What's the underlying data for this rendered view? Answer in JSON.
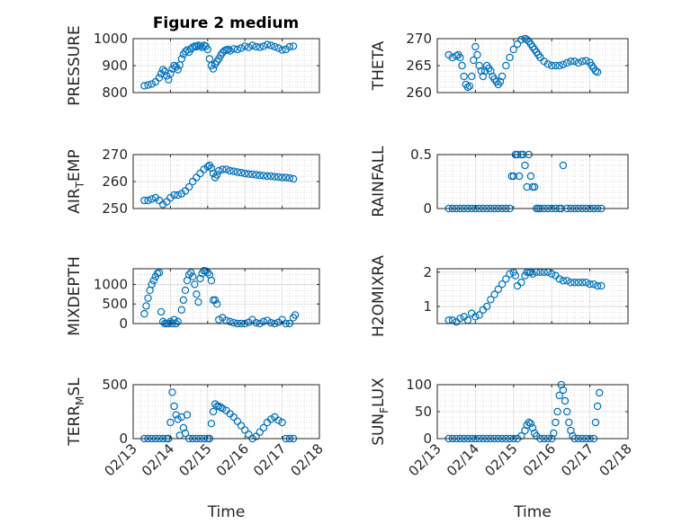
{
  "figure": {
    "title": "Figure 2 medium",
    "marker_color": "#0072BD"
  },
  "chart_data": [
    {
      "type": "scatter",
      "title": "Figure 2 medium",
      "ylabel": "PRESSURE",
      "ylabel_sub": "",
      "ylabel_tail": "",
      "xlabel": "",
      "ylim": [
        800,
        1000
      ],
      "yticks": [
        800,
        900,
        1000
      ],
      "x_ticklabels": [],
      "grid": true,
      "series": [
        {
          "x": [
            13.3,
            13.4,
            13.5,
            13.6,
            13.7,
            13.75,
            13.8,
            13.85,
            13.9,
            13.95,
            14.0,
            14.05,
            14.1,
            14.15,
            14.2,
            14.25,
            14.3,
            14.35,
            14.4,
            14.45,
            14.5,
            14.55,
            14.6,
            14.65,
            14.7,
            14.75,
            14.8,
            14.85,
            14.9,
            14.95,
            15.0,
            15.05,
            15.1,
            15.15,
            15.2,
            15.25,
            15.3,
            15.35,
            15.4,
            15.45,
            15.5,
            15.55,
            15.6,
            15.7,
            15.8,
            15.9,
            16.0,
            16.1,
            16.2,
            16.3,
            16.4,
            16.5,
            16.6,
            16.7,
            16.8,
            16.9,
            17.0,
            17.1,
            17.2,
            17.3
          ],
          "y": [
            825,
            828,
            832,
            840,
            855,
            870,
            885,
            878,
            862,
            848,
            870,
            888,
            900,
            895,
            885,
            902,
            925,
            942,
            952,
            958,
            950,
            962,
            968,
            972,
            970,
            975,
            972,
            968,
            975,
            972,
            960,
            925,
            900,
            888,
            905,
            915,
            925,
            938,
            948,
            955,
            958,
            960,
            955,
            962,
            960,
            965,
            972,
            968,
            975,
            970,
            968,
            972,
            978,
            975,
            970,
            965,
            958,
            960,
            970,
            972
          ]
        }
      ]
    },
    {
      "type": "scatter",
      "title": "",
      "ylabel": "THETA",
      "ylabel_sub": "",
      "ylabel_tail": "",
      "xlabel": "",
      "ylim": [
        260,
        270
      ],
      "yticks": [
        260,
        265,
        270
      ],
      "x_ticklabels": [],
      "grid": true,
      "series": [
        {
          "x": [
            13.3,
            13.4,
            13.5,
            13.55,
            13.6,
            13.65,
            13.7,
            13.75,
            13.8,
            13.85,
            13.9,
            13.95,
            14.0,
            14.05,
            14.1,
            14.15,
            14.2,
            14.25,
            14.3,
            14.35,
            14.4,
            14.45,
            14.5,
            14.55,
            14.6,
            14.65,
            14.7,
            14.8,
            14.9,
            15.0,
            15.1,
            15.2,
            15.3,
            15.35,
            15.4,
            15.45,
            15.5,
            15.55,
            15.6,
            15.65,
            15.7,
            15.8,
            15.9,
            16.0,
            16.1,
            16.2,
            16.3,
            16.4,
            16.5,
            16.6,
            16.7,
            16.8,
            16.9,
            17.0,
            17.05,
            17.1,
            17.15,
            17.2
          ],
          "y": [
            267,
            266.5,
            266.8,
            267,
            266.5,
            265,
            263,
            261.5,
            261,
            261.2,
            263,
            266,
            268.5,
            267,
            265,
            264,
            263,
            264,
            265,
            264.5,
            264,
            263,
            262.5,
            262,
            261.5,
            262,
            263,
            265,
            266.5,
            268,
            269,
            269.8,
            270,
            269.8,
            269.5,
            269,
            268.5,
            268,
            267.5,
            267,
            266.5,
            265.8,
            265.3,
            265,
            265,
            265,
            265.2,
            265.5,
            265.8,
            265.8,
            265.5,
            265.8,
            265.9,
            265.6,
            265,
            264.5,
            264,
            263.8
          ]
        }
      ]
    },
    {
      "type": "scatter",
      "title": "",
      "ylabel": "AIR",
      "ylabel_sub": "T",
      "ylabel_tail": "EMP",
      "xlabel": "",
      "ylim": [
        250,
        270
      ],
      "yticks": [
        250,
        260,
        270
      ],
      "x_ticklabels": [],
      "grid": true,
      "series": [
        {
          "x": [
            13.3,
            13.4,
            13.5,
            13.6,
            13.7,
            13.8,
            13.9,
            14.0,
            14.1,
            14.2,
            14.3,
            14.4,
            14.5,
            14.6,
            14.7,
            14.8,
            14.9,
            15.0,
            15.05,
            15.1,
            15.15,
            15.2,
            15.25,
            15.3,
            15.4,
            15.5,
            15.6,
            15.7,
            15.8,
            15.9,
            16.0,
            16.1,
            16.2,
            16.3,
            16.4,
            16.5,
            16.6,
            16.7,
            16.8,
            16.9,
            17.0,
            17.1,
            17.2,
            17.3
          ],
          "y": [
            253,
            253,
            253.5,
            254,
            253,
            251.5,
            252.5,
            254,
            255,
            255,
            255.5,
            256.5,
            258,
            260,
            261.5,
            263,
            264.5,
            265.5,
            266,
            265,
            263,
            261.5,
            262.5,
            264,
            264.5,
            264.5,
            264,
            263.8,
            263.5,
            263.3,
            263,
            262.8,
            262.7,
            262.5,
            262.3,
            262.2,
            262,
            262,
            261.8,
            261.7,
            261.5,
            261.5,
            261.3,
            261
          ]
        }
      ]
    },
    {
      "type": "scatter",
      "title": "",
      "ylabel": "RAINFALL",
      "ylabel_sub": "",
      "ylabel_tail": "",
      "xlabel": "",
      "ylim": [
        0,
        0.5
      ],
      "yticks": [
        0,
        0.5
      ],
      "x_ticklabels": [],
      "grid": true,
      "series": [
        {
          "x": [
            13.3,
            13.4,
            13.5,
            13.6,
            13.7,
            13.8,
            13.9,
            14.0,
            14.1,
            14.2,
            14.3,
            14.4,
            14.5,
            14.6,
            14.7,
            14.8,
            14.9,
            14.95,
            15.0,
            15.05,
            15.1,
            15.15,
            15.2,
            15.25,
            15.3,
            15.35,
            15.4,
            15.45,
            15.5,
            15.55,
            15.6,
            15.65,
            15.7,
            15.8,
            15.9,
            16.0,
            16.1,
            16.2,
            16.25,
            16.3,
            16.4,
            16.5,
            16.6,
            16.7,
            16.8,
            16.9,
            17.0,
            17.1,
            17.2,
            17.3
          ],
          "y": [
            0,
            0,
            0,
            0,
            0,
            0,
            0,
            0,
            0,
            0,
            0,
            0,
            0,
            0,
            0,
            0,
            0,
            0.3,
            0.3,
            0.5,
            0.5,
            0.3,
            0.5,
            0.5,
            0.4,
            0.2,
            0.5,
            0.3,
            0.2,
            0.2,
            0,
            0,
            0,
            0,
            0,
            0,
            0,
            0,
            0,
            0.4,
            0,
            0,
            0,
            0,
            0,
            0,
            0,
            0,
            0,
            0
          ]
        }
      ]
    },
    {
      "type": "scatter",
      "title": "",
      "ylabel": "MIXDEPTH",
      "ylabel_sub": "",
      "ylabel_tail": "",
      "xlabel": "",
      "ylim": [
        0,
        1400
      ],
      "yticks": [
        0,
        500,
        1000
      ],
      "x_ticklabels": [],
      "grid": true,
      "series": [
        {
          "x": [
            13.3,
            13.35,
            13.4,
            13.45,
            13.5,
            13.55,
            13.6,
            13.65,
            13.7,
            13.75,
            13.8,
            13.85,
            13.9,
            13.95,
            14.0,
            14.05,
            14.1,
            14.15,
            14.2,
            14.3,
            14.35,
            14.4,
            14.45,
            14.5,
            14.55,
            14.6,
            14.65,
            14.7,
            14.75,
            14.8,
            14.85,
            14.9,
            14.95,
            15.0,
            15.05,
            15.1,
            15.15,
            15.2,
            15.25,
            15.3,
            15.4,
            15.5,
            15.6,
            15.7,
            15.8,
            15.9,
            16.0,
            16.1,
            16.2,
            16.3,
            16.4,
            16.5,
            16.6,
            16.7,
            16.8,
            16.9,
            17.0,
            17.1,
            17.2,
            17.3,
            17.35
          ],
          "y": [
            250,
            450,
            650,
            850,
            1000,
            1100,
            1200,
            1280,
            1300,
            300,
            50,
            0,
            0,
            0,
            50,
            0,
            100,
            0,
            50,
            350,
            600,
            850,
            1100,
            1250,
            1300,
            1200,
            1000,
            750,
            550,
            1150,
            1280,
            1350,
            1340,
            1300,
            1250,
            1100,
            600,
            600,
            500,
            100,
            150,
            80,
            50,
            20,
            0,
            0,
            0,
            30,
            100,
            20,
            0,
            50,
            80,
            20,
            0,
            30,
            100,
            0,
            0,
            150,
            220
          ]
        }
      ]
    },
    {
      "type": "scatter",
      "title": "",
      "ylabel": "H2OMIXRA",
      "ylabel_sub": "",
      "ylabel_tail": "",
      "xlabel": "",
      "ylim": [
        0.5,
        2.1
      ],
      "yticks": [
        1,
        2
      ],
      "x_ticklabels": [],
      "grid": true,
      "series": [
        {
          "x": [
            13.3,
            13.4,
            13.5,
            13.6,
            13.7,
            13.8,
            13.9,
            14.0,
            14.1,
            14.2,
            14.3,
            14.4,
            14.5,
            14.6,
            14.7,
            14.8,
            14.9,
            15.0,
            15.05,
            15.1,
            15.2,
            15.3,
            15.35,
            15.4,
            15.45,
            15.5,
            15.6,
            15.7,
            15.8,
            15.9,
            16.0,
            16.1,
            16.2,
            16.3,
            16.4,
            16.5,
            16.6,
            16.7,
            16.8,
            16.9,
            17.0,
            17.1,
            17.2,
            17.3
          ],
          "y": [
            0.6,
            0.6,
            0.55,
            0.65,
            0.7,
            0.6,
            0.8,
            0.7,
            0.75,
            0.9,
            1.0,
            1.2,
            1.35,
            1.5,
            1.65,
            1.8,
            1.95,
            2.0,
            1.9,
            1.6,
            1.7,
            1.9,
            2.0,
            2.0,
            2.0,
            1.95,
            2.0,
            2.0,
            2.0,
            2.0,
            1.95,
            1.9,
            1.8,
            1.75,
            1.75,
            1.7,
            1.7,
            1.7,
            1.7,
            1.7,
            1.65,
            1.65,
            1.6,
            1.6
          ]
        }
      ]
    },
    {
      "type": "scatter",
      "title": "",
      "ylabel": "TERR",
      "ylabel_sub": "M",
      "ylabel_tail": "SL",
      "xlabel": "Time",
      "ylim": [
        0,
        500
      ],
      "yticks": [
        0,
        500
      ],
      "x_ticklabels": [
        "02/13",
        "02/14",
        "02/15",
        "02/16",
        "02/17",
        "02/18"
      ],
      "grid": true,
      "series": [
        {
          "x": [
            13.3,
            13.4,
            13.5,
            13.6,
            13.7,
            13.8,
            13.9,
            13.95,
            14.0,
            14.05,
            14.1,
            14.15,
            14.2,
            14.25,
            14.3,
            14.35,
            14.4,
            14.45,
            14.5,
            14.6,
            14.7,
            14.8,
            14.9,
            15.0,
            15.05,
            15.1,
            15.15,
            15.2,
            15.25,
            15.3,
            15.35,
            15.4,
            15.5,
            15.6,
            15.7,
            15.8,
            15.9,
            16.0,
            16.1,
            16.2,
            16.3,
            16.4,
            16.5,
            16.6,
            16.7,
            16.8,
            16.9,
            17.0,
            17.1,
            17.2,
            17.3
          ],
          "y": [
            0,
            0,
            0,
            0,
            0,
            0,
            0,
            0,
            150,
            430,
            300,
            220,
            180,
            30,
            200,
            100,
            50,
            220,
            0,
            0,
            0,
            0,
            0,
            0,
            0,
            140,
            250,
            320,
            300,
            300,
            290,
            280,
            260,
            230,
            200,
            160,
            120,
            80,
            40,
            0,
            20,
            60,
            100,
            150,
            180,
            200,
            170,
            150,
            0,
            0,
            0
          ]
        }
      ]
    },
    {
      "type": "scatter",
      "title": "",
      "ylabel": "SUN",
      "ylabel_sub": "F",
      "ylabel_tail": "LUX",
      "xlabel": "Time",
      "ylim": [
        0,
        100
      ],
      "yticks": [
        0,
        50,
        100
      ],
      "x_ticklabels": [
        "02/13",
        "02/14",
        "02/15",
        "02/16",
        "02/17",
        "02/18"
      ],
      "grid": true,
      "series": [
        {
          "x": [
            13.3,
            13.4,
            13.5,
            13.6,
            13.7,
            13.8,
            13.9,
            14.0,
            14.1,
            14.2,
            14.3,
            14.4,
            14.5,
            14.6,
            14.7,
            14.8,
            14.9,
            15.0,
            15.1,
            15.2,
            15.3,
            15.35,
            15.4,
            15.45,
            15.5,
            15.55,
            15.6,
            15.7,
            15.8,
            15.9,
            16.0,
            16.05,
            16.1,
            16.15,
            16.2,
            16.25,
            16.3,
            16.35,
            16.4,
            16.45,
            16.5,
            16.55,
            16.6,
            16.7,
            16.8,
            16.9,
            17.0,
            17.1,
            17.15,
            17.2,
            17.25
          ],
          "y": [
            0,
            0,
            0,
            0,
            0,
            0,
            0,
            0,
            0,
            0,
            0,
            0,
            0,
            0,
            0,
            0,
            0,
            0,
            0,
            5,
            15,
            25,
            30,
            28,
            20,
            10,
            5,
            0,
            0,
            0,
            0,
            10,
            30,
            50,
            80,
            100,
            90,
            70,
            50,
            30,
            15,
            5,
            0,
            0,
            0,
            0,
            0,
            0,
            30,
            60,
            85
          ]
        }
      ]
    }
  ]
}
